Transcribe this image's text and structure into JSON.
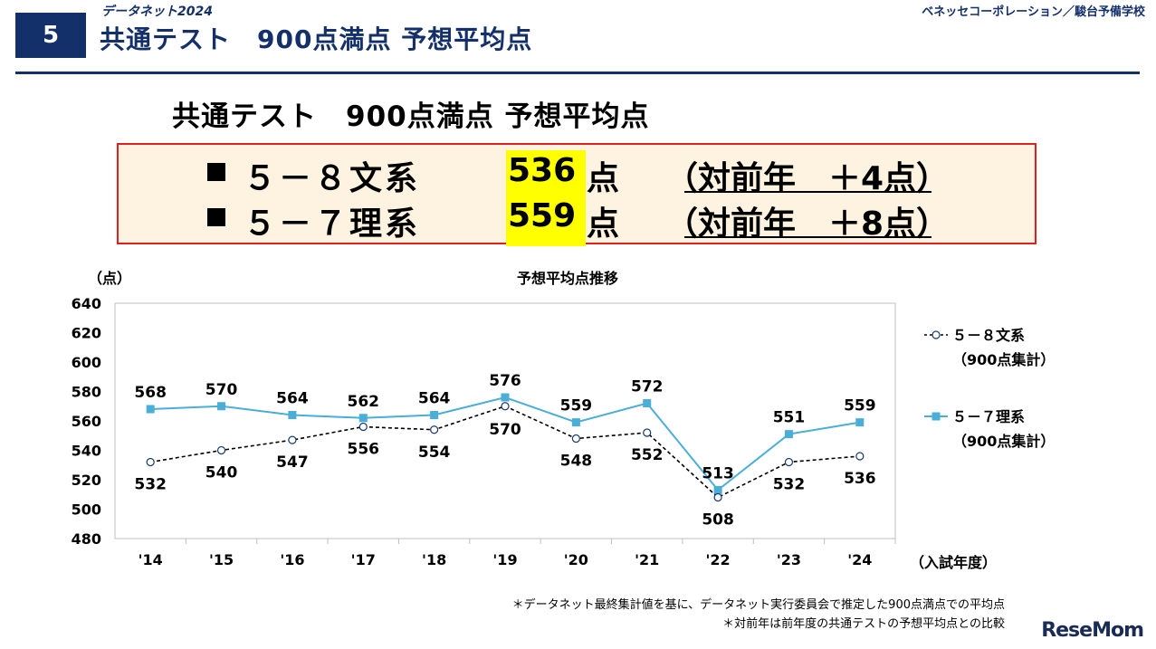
{
  "header": {
    "slide_number": "5",
    "eyebrow": "データネット2024",
    "title": "共通テスト　900点満点 予想平均点",
    "publisher": "ベネッセコーポレーション／駿台予備学校"
  },
  "summary": {
    "title": "共通テスト　900点満点 予想平均点",
    "rows": [
      {
        "label": "５－８文系",
        "value": "536",
        "unit": "点",
        "change": "（対前年　＋4点）"
      },
      {
        "label": "５－７理系",
        "value": "559",
        "unit": "点",
        "change": "（対前年　＋8点）"
      }
    ]
  },
  "chart_data": {
    "type": "line",
    "title": "予想平均点推移",
    "ylabel": "（点）",
    "xlabel": "（入試年度）",
    "ylim": [
      480,
      640
    ],
    "yticks": [
      480,
      500,
      520,
      540,
      560,
      580,
      600,
      620,
      640
    ],
    "categories": [
      "'14",
      "'15",
      "'16",
      "'17",
      "'18",
      "'19",
      "'20",
      "'21",
      "'22",
      "'23",
      "'24"
    ],
    "series": [
      {
        "name": "５－８文系",
        "note": "（900点集計）",
        "values": [
          532,
          540,
          547,
          556,
          554,
          570,
          548,
          552,
          508,
          532,
          536
        ],
        "color": "#000000",
        "style": "dashed-open-circle"
      },
      {
        "name": "５－７理系",
        "note": "（900点集計）",
        "values": [
          568,
          570,
          564,
          562,
          564,
          576,
          559,
          572,
          513,
          551,
          559
        ],
        "color": "#4aaed9",
        "style": "solid-square"
      }
    ]
  },
  "footnotes": [
    "＊データネット最終集計値を基に、データネット実行委員会で推定した900点満点での平均点",
    "＊対前年は前年度の共通テストの予想平均点との比較"
  ],
  "watermark": "ReseMom"
}
